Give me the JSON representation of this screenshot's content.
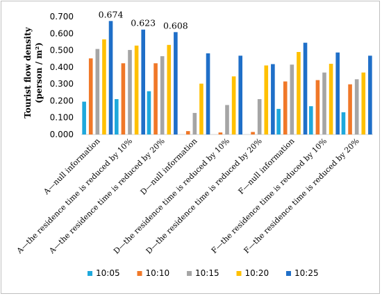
{
  "chart_data": {
    "type": "bar",
    "ylabel_line1": "Tourist flow density",
    "ylabel_line2": "(person / m²)",
    "ylim": [
      0,
      0.7
    ],
    "yticks": [
      "0.000",
      "0.100",
      "0.200",
      "0.300",
      "0.400",
      "0.500",
      "0.600",
      "0.700"
    ],
    "grid": false,
    "legend_position": "bottom",
    "categories": [
      "A—null information",
      "A—the residence time is reduced by 10%",
      "A—the residence time is reduced by 20%",
      "D—null information",
      "D—the residence time is reduced by 10%",
      "D—the residence time is reduced by 20%",
      "F—null information",
      "F—the residence time is reduced by 10%",
      "F—the residence time is reduced by 20%"
    ],
    "series": [
      {
        "name": "10:05",
        "color": "#1ea8dc",
        "values": [
          0.195,
          0.21,
          0.257,
          0.0,
          0.0,
          0.0,
          0.152,
          0.168,
          0.132
        ]
      },
      {
        "name": "10:10",
        "color": "#f07828",
        "values": [
          0.452,
          0.423,
          0.423,
          0.02,
          0.012,
          0.015,
          0.315,
          0.323,
          0.298
        ]
      },
      {
        "name": "10:15",
        "color": "#a5a5a5",
        "values": [
          0.508,
          0.502,
          0.465,
          0.128,
          0.175,
          0.21,
          0.415,
          0.368,
          0.328
        ]
      },
      {
        "name": "10:20",
        "color": "#ffc000",
        "values": [
          0.565,
          0.528,
          0.532,
          0.302,
          0.345,
          0.41,
          0.49,
          0.42,
          0.368
        ]
      },
      {
        "name": "10:25",
        "color": "#1f6fc8",
        "values": [
          0.674,
          0.623,
          0.608,
          0.482,
          0.468,
          0.418,
          0.545,
          0.487,
          0.468
        ]
      }
    ],
    "data_labels": [
      {
        "category_index": 0,
        "series_index": 4,
        "text": "0.674"
      },
      {
        "category_index": 1,
        "series_index": 4,
        "text": "0.623"
      },
      {
        "category_index": 2,
        "series_index": 4,
        "text": "0.608"
      }
    ]
  }
}
